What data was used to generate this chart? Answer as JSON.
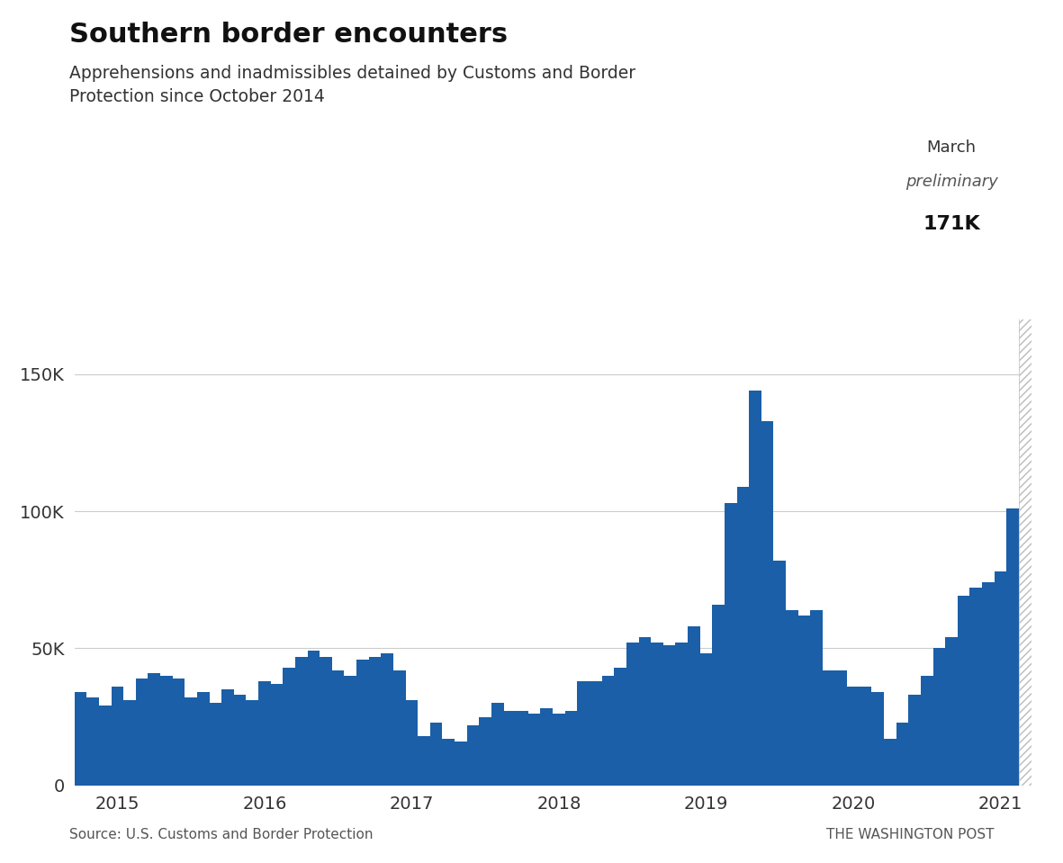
{
  "title": "Southern border encounters",
  "subtitle": "Apprehensions and inadmissibles detained by Customs and Border\nProtection since October 2014",
  "source": "Source: U.S. Customs and Border Protection",
  "attribution": "THE WASHINGTON POST",
  "bar_color": "#1a5fa8",
  "preliminary_color": "#c8c8c8",
  "background_color": "#ffffff",
  "annotation_line1": "March",
  "annotation_line2": "preliminary",
  "annotation_line3": "171K",
  "ylim": [
    0,
    170000
  ],
  "yticks": [
    0,
    50000,
    100000,
    150000
  ],
  "ytick_labels": [
    "0",
    "50K",
    "100K",
    "150K"
  ],
  "values": [
    34000,
    32000,
    29000,
    36000,
    31000,
    39000,
    41000,
    40000,
    39000,
    32000,
    34000,
    30000,
    35000,
    33000,
    31000,
    38000,
    37000,
    43000,
    47000,
    49000,
    47000,
    42000,
    40000,
    46000,
    47000,
    48000,
    42000,
    31000,
    18000,
    23000,
    17000,
    16000,
    22000,
    25000,
    30000,
    27000,
    27000,
    26000,
    28000,
    26000,
    27000,
    38000,
    38000,
    40000,
    43000,
    52000,
    54000,
    52000,
    51000,
    52000,
    58000,
    48000,
    66000,
    103000,
    109000,
    144000,
    133000,
    82000,
    64000,
    62000,
    64000,
    42000,
    42000,
    36000,
    36000,
    34000,
    17000,
    23000,
    33000,
    40000,
    50000,
    54000,
    69000,
    72000,
    74000,
    78000,
    101000,
    171000
  ],
  "xtick_positions": [
    3,
    15,
    27,
    39,
    51,
    63,
    75
  ],
  "xtick_labels": [
    "2015",
    "2016",
    "2017",
    "2018",
    "2019",
    "2020",
    "2021"
  ]
}
